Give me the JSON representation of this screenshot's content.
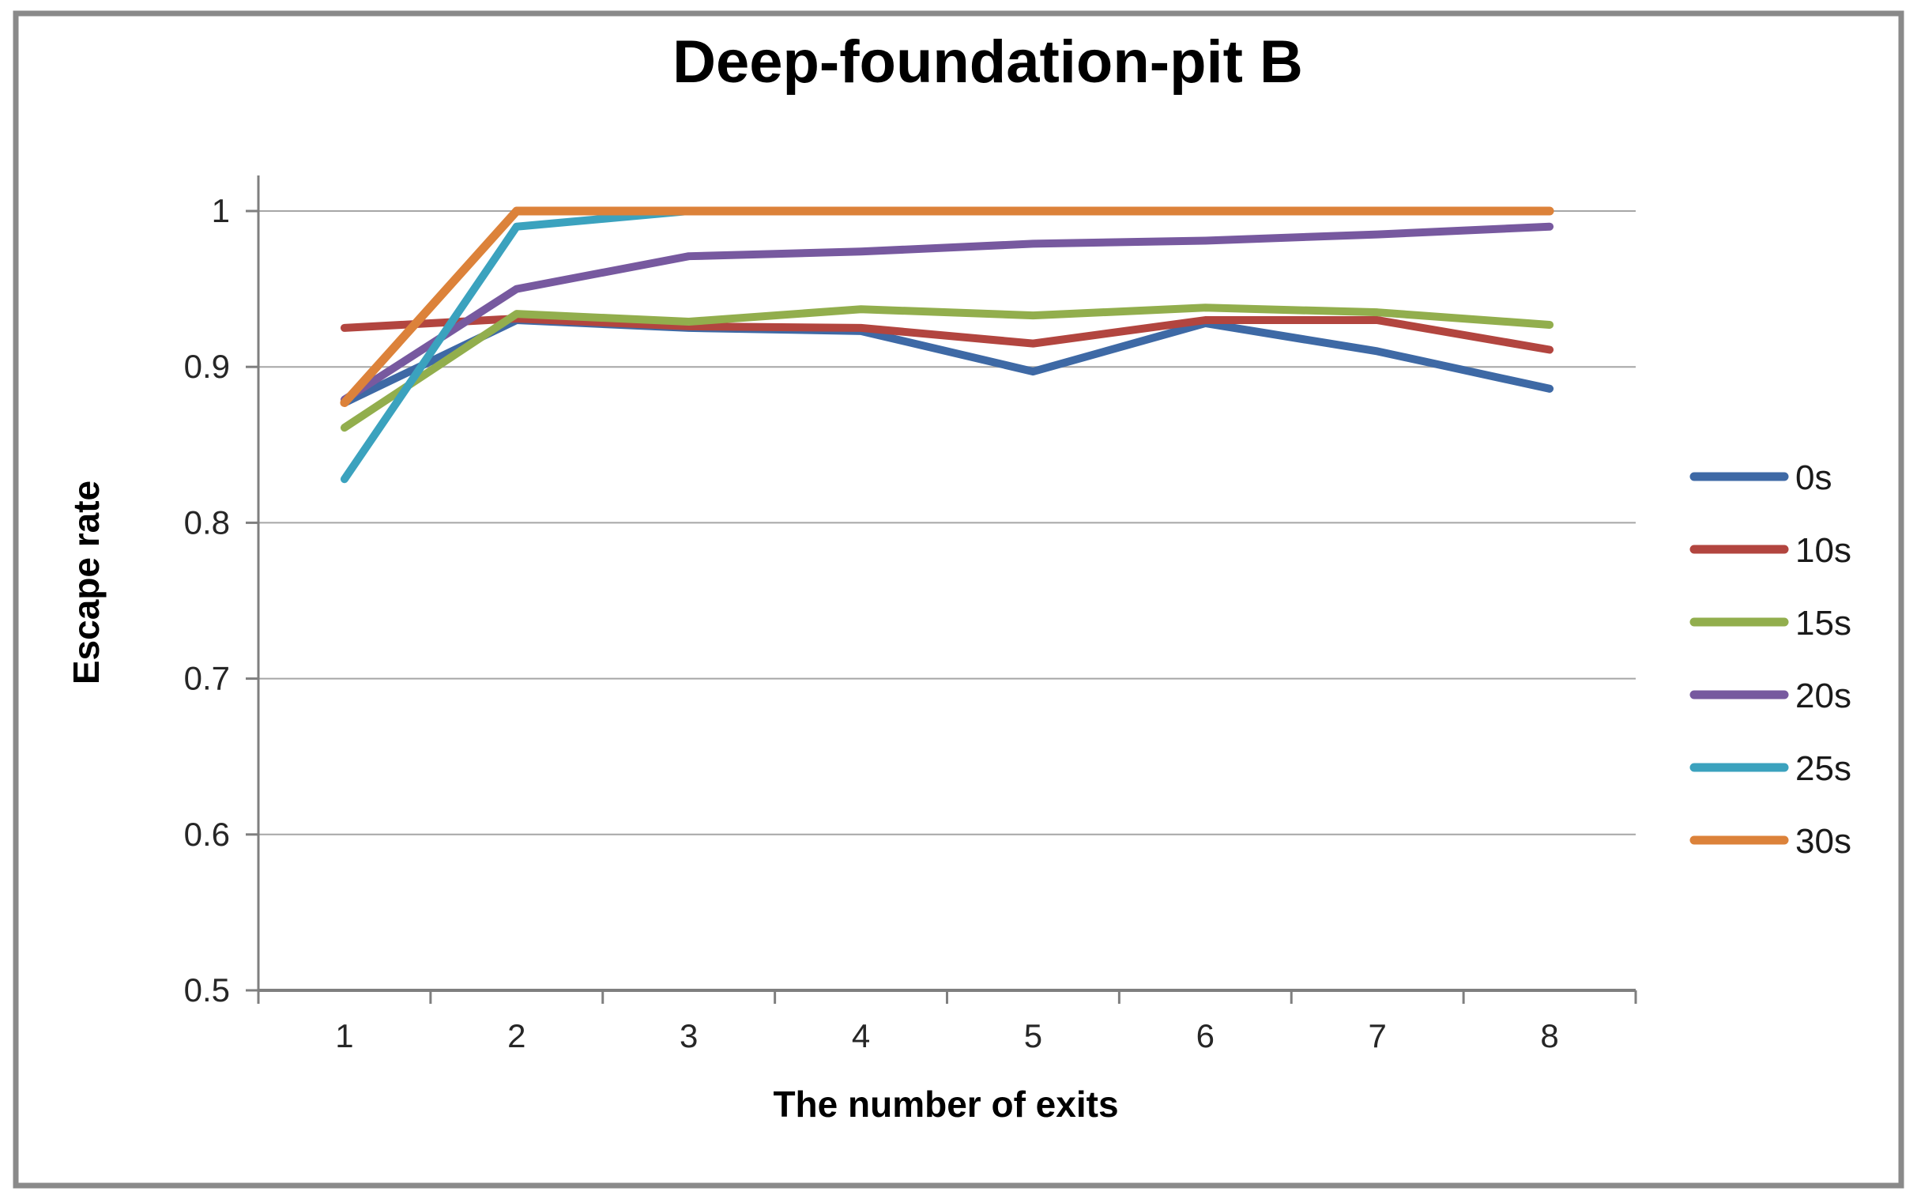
{
  "title": "Deep-foundation-pit B",
  "y_axis": {
    "label": "Escape rate"
  },
  "x_axis": {
    "label": "The number of exits"
  },
  "frame_color": "#8a8a8a",
  "gridline_color": "#a6a6a6",
  "axis_color": "#7f7f7f",
  "chart_data": {
    "type": "line",
    "title": "Deep-foundation-pit B",
    "xlabel": "The number of exits",
    "ylabel": "Escape rate",
    "categories": [
      1,
      2,
      3,
      4,
      5,
      6,
      7,
      8
    ],
    "ylim": [
      0.5,
      1.0
    ],
    "yticks": [
      {
        "value": 1.0,
        "label": "1"
      },
      {
        "value": 0.9,
        "label": "0.9"
      },
      {
        "value": 0.8,
        "label": "0.8"
      },
      {
        "value": 0.7,
        "label": "0.7"
      },
      {
        "value": 0.6,
        "label": "0.6"
      },
      {
        "value": 0.5,
        "label": "0.5"
      }
    ],
    "grid": "horizontal",
    "legend_position": "right",
    "series": [
      {
        "name": "0s",
        "color": "#3e69a5",
        "width": 10,
        "values": [
          0.877,
          0.93,
          0.925,
          0.923,
          0.897,
          0.928,
          0.91,
          0.886
        ]
      },
      {
        "name": "10s",
        "color": "#b2453f",
        "width": 10,
        "values": [
          0.925,
          0.931,
          0.926,
          0.925,
          0.915,
          0.93,
          0.93,
          0.911
        ]
      },
      {
        "name": "15s",
        "color": "#92ae4d",
        "width": 10,
        "values": [
          0.861,
          0.934,
          0.929,
          0.937,
          0.933,
          0.938,
          0.935,
          0.927
        ]
      },
      {
        "name": "20s",
        "color": "#77599f",
        "width": 10,
        "values": [
          0.879,
          0.95,
          0.971,
          0.974,
          0.979,
          0.981,
          0.985,
          0.99
        ]
      },
      {
        "name": "25s",
        "color": "#3ba2be",
        "width": 10,
        "values": [
          0.828,
          0.99,
          1.0,
          1.0,
          1.0,
          1.0,
          1.0,
          1.0
        ]
      },
      {
        "name": "30s",
        "color": "#dc823a",
        "width": 11,
        "values": [
          0.877,
          1.0,
          1.0,
          1.0,
          1.0,
          1.0,
          1.0,
          1.0
        ]
      }
    ]
  }
}
